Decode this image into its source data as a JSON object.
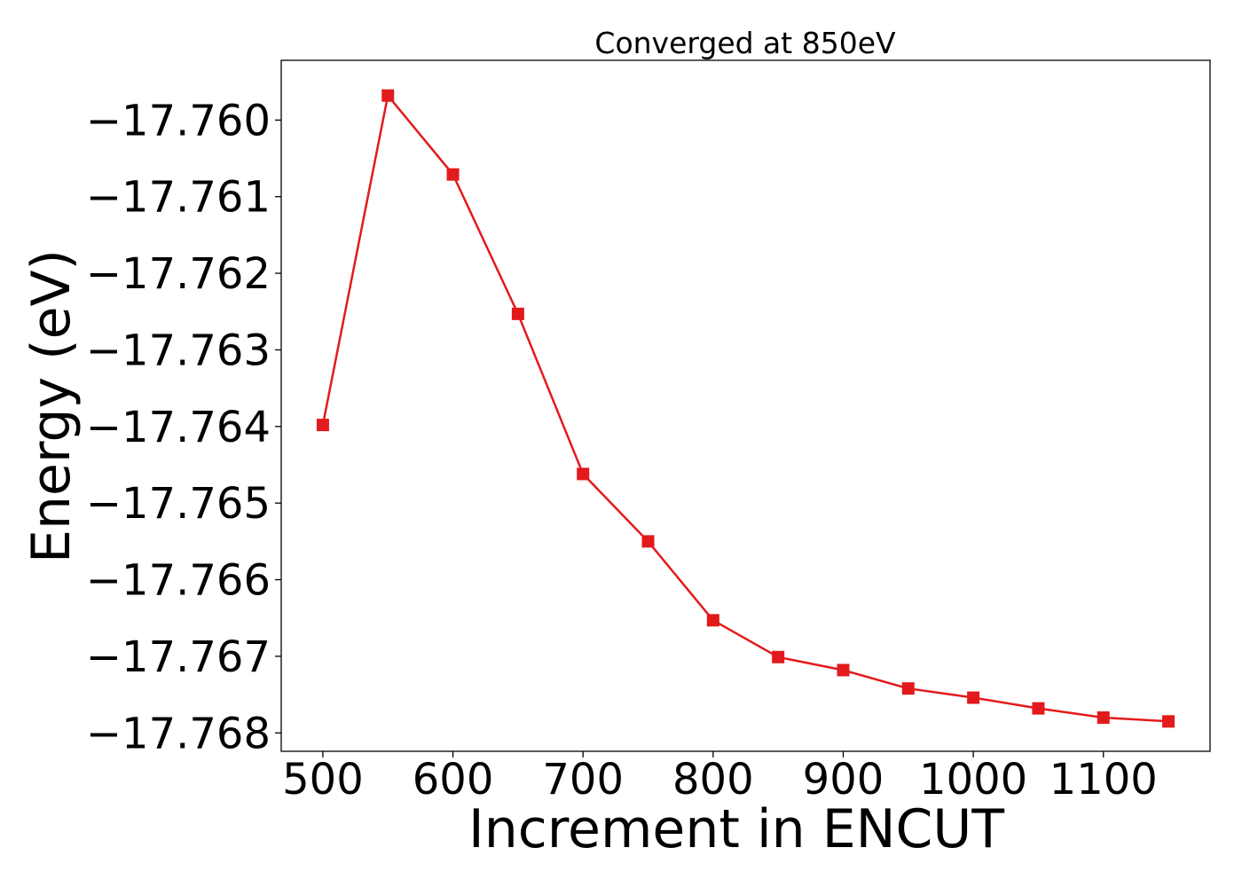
{
  "chart_data": {
    "type": "line",
    "title": "Converged at 850eV",
    "xlabel": "Increment in ENCUT",
    "ylabel": "Energy (eV)",
    "xlim": [
      468,
      1182
    ],
    "ylim": [
      -17.76824,
      -17.75922
    ],
    "x_ticks": [
      500,
      600,
      700,
      800,
      900,
      1000,
      1100
    ],
    "x_tick_labels": [
      "500",
      "600",
      "700",
      "800",
      "900",
      "1000",
      "1100"
    ],
    "y_ticks": [
      -17.76,
      -17.761,
      -17.762,
      -17.763,
      -17.764,
      -17.765,
      -17.766,
      -17.767,
      -17.768
    ],
    "y_tick_labels": [
      "−17.760",
      "−17.761",
      "−17.762",
      "−17.763",
      "−17.764",
      "−17.765",
      "−17.766",
      "−17.767",
      "−17.768"
    ],
    "grid": false,
    "series": [
      {
        "color": "#e31a1c",
        "marker": "square",
        "x": [
          500,
          550,
          600,
          650,
          700,
          750,
          800,
          850,
          900,
          950,
          1000,
          1050,
          1100,
          1150
        ],
        "y": [
          -17.76398,
          -17.75968,
          -17.76071,
          -17.76253,
          -17.76462,
          -17.7655,
          -17.76653,
          -17.76701,
          -17.76718,
          -17.76742,
          -17.76754,
          -17.76768,
          -17.7678,
          -17.76785
        ]
      }
    ]
  }
}
